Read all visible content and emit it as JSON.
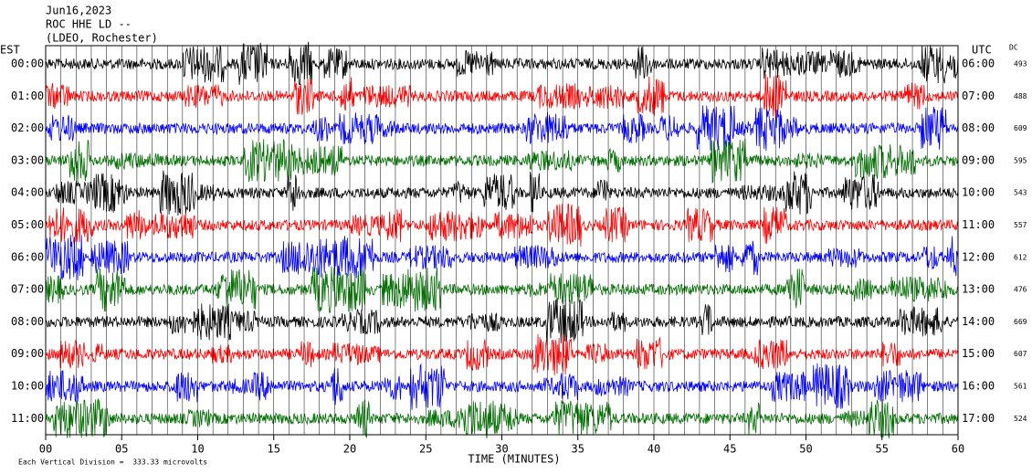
{
  "header": {
    "date": "Jun16,2023",
    "station": "ROC HHE LD --",
    "network": "(LDEO, Rochester)"
  },
  "left_axis": {
    "title": "EST",
    "labels": [
      "00:00",
      "01:00",
      "02:00",
      "03:00",
      "04:00",
      "05:00",
      "06:00",
      "07:00",
      "08:00",
      "09:00",
      "10:00",
      "11:00"
    ]
  },
  "right_axis": {
    "title": "UTC",
    "labels": [
      "06:00",
      "07:00",
      "08:00",
      "09:00",
      "10:00",
      "11:00",
      "12:00",
      "13:00",
      "14:00",
      "15:00",
      "16:00",
      "17:00"
    ]
  },
  "dc": {
    "title": "DC",
    "values": [
      493,
      488,
      609,
      595,
      543,
      557,
      612,
      476,
      669,
      607,
      561,
      524
    ]
  },
  "x_axis": {
    "ticks": [
      {
        "value": 0,
        "label": "00"
      },
      {
        "value": 5,
        "label": "05"
      },
      10,
      15,
      20,
      25,
      30,
      35,
      40,
      45,
      50,
      55,
      60
    ],
    "title": "TIME (MINUTES)"
  },
  "footer": "Each Vertical Division =  333.33 microvolts"
}
